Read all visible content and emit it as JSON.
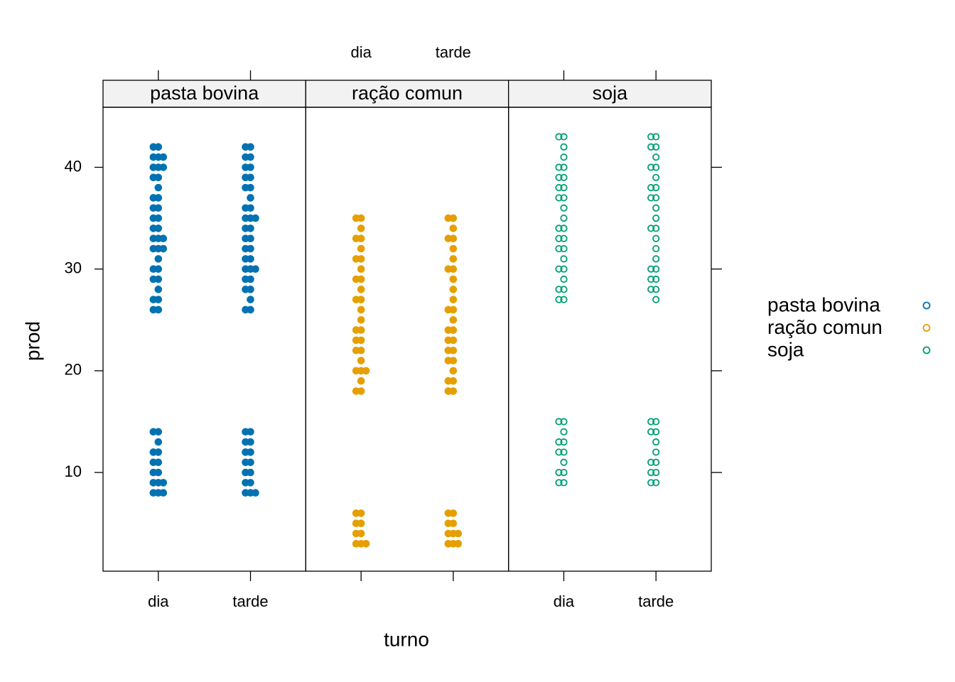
{
  "chart_data": {
    "type": "strip",
    "xlabel": "turno",
    "ylabel": "prod",
    "categories": [
      "dia",
      "tarde"
    ],
    "xlim": [
      0.4,
      2.6
    ],
    "ylim": [
      0.3,
      45.9
    ],
    "yticks": [
      10,
      20,
      30,
      40
    ],
    "legend": "right",
    "series": [
      {
        "name": "pasta bovina",
        "color": "#0072b2",
        "filled": true,
        "values": [
          [
            8,
            8,
            8,
            9,
            9,
            9,
            10,
            10,
            11,
            11,
            12,
            12,
            13,
            14,
            14,
            26,
            26,
            27,
            27,
            28,
            29,
            29,
            30,
            30,
            31,
            32,
            32,
            32,
            33,
            33,
            33,
            34,
            34,
            35,
            35,
            36,
            36,
            37,
            37,
            38,
            39,
            39,
            40,
            40,
            40,
            41,
            41,
            41,
            42,
            42
          ],
          [
            8,
            8,
            8,
            9,
            9,
            10,
            10,
            11,
            11,
            12,
            12,
            13,
            13,
            14,
            14,
            26,
            26,
            27,
            28,
            28,
            29,
            29,
            30,
            30,
            30,
            31,
            31,
            32,
            32,
            33,
            33,
            34,
            34,
            35,
            35,
            35,
            36,
            36,
            37,
            38,
            38,
            39,
            39,
            40,
            40,
            41,
            41,
            42,
            42
          ]
        ]
      },
      {
        "name": "ração comun",
        "color": "#e69f00",
        "filled": true,
        "values": [
          [
            3,
            3,
            3,
            4,
            4,
            5,
            5,
            6,
            6,
            18,
            18,
            19,
            20,
            20,
            20,
            21,
            22,
            22,
            23,
            23,
            24,
            24,
            25,
            26,
            27,
            27,
            28,
            29,
            29,
            30,
            31,
            31,
            32,
            33,
            33,
            34,
            35,
            35
          ],
          [
            3,
            3,
            3,
            4,
            4,
            4,
            5,
            5,
            6,
            6,
            18,
            18,
            19,
            19,
            20,
            21,
            21,
            22,
            22,
            23,
            23,
            24,
            24,
            25,
            26,
            26,
            27,
            28,
            29,
            30,
            30,
            31,
            32,
            33,
            33,
            34,
            35,
            35
          ]
        ]
      },
      {
        "name": "soja",
        "color": "#009e73",
        "filled": false,
        "values": [
          [
            9,
            9,
            10,
            10,
            11,
            12,
            12,
            13,
            13,
            14,
            15,
            15,
            27,
            27,
            28,
            28,
            29,
            30,
            30,
            31,
            32,
            32,
            33,
            33,
            34,
            34,
            35,
            36,
            37,
            37,
            38,
            38,
            39,
            39,
            40,
            40,
            41,
            42,
            43,
            43
          ],
          [
            9,
            9,
            10,
            10,
            11,
            11,
            12,
            13,
            14,
            14,
            15,
            15,
            27,
            28,
            28,
            29,
            29,
            30,
            30,
            31,
            32,
            33,
            34,
            34,
            35,
            36,
            37,
            37,
            38,
            38,
            39,
            40,
            40,
            41,
            42,
            42,
            43,
            43
          ]
        ]
      }
    ]
  }
}
